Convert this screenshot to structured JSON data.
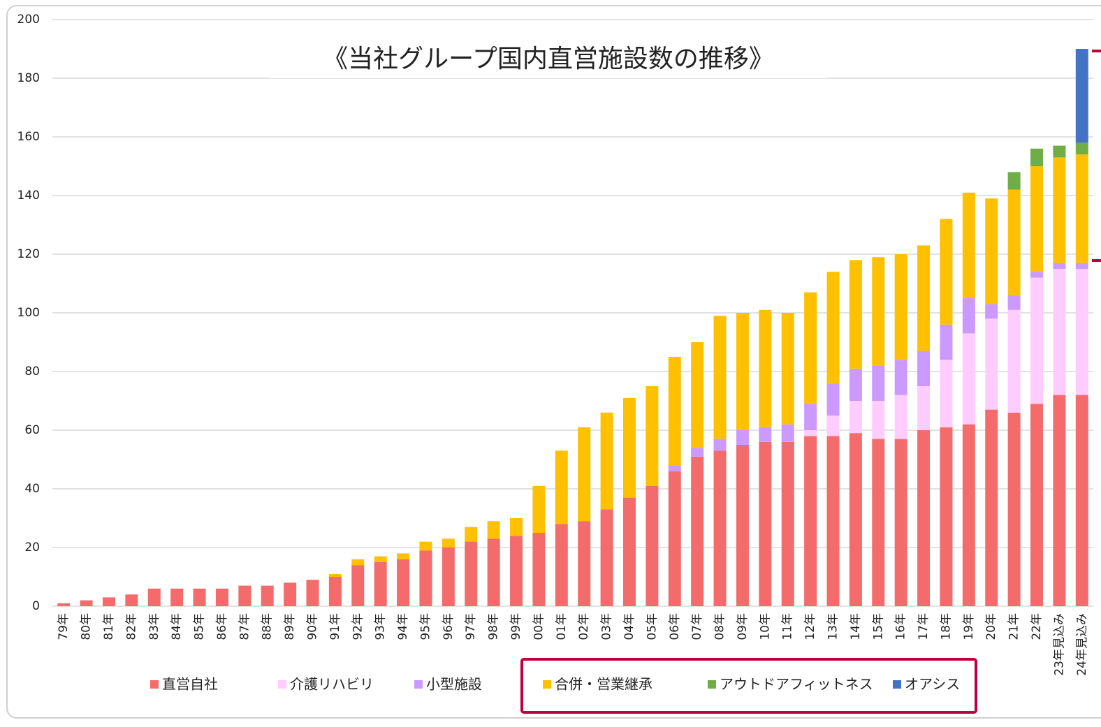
{
  "chart_data": {
    "type": "stacked_bar",
    "title": "《当社グループ国内直営施設数の推移》",
    "categories": [
      "79年",
      "80年",
      "81年",
      "82年",
      "83年",
      "84年",
      "85年",
      "86年",
      "87年",
      "88年",
      "89年",
      "90年",
      "91年",
      "92年",
      "93年",
      "94年",
      "95年",
      "96年",
      "97年",
      "98年",
      "99年",
      "00年",
      "01年",
      "02年",
      "03年",
      "04年",
      "05年",
      "06年",
      "07年",
      "08年",
      "09年",
      "10年",
      "11年",
      "12年",
      "13年",
      "14年",
      "15年",
      "16年",
      "17年",
      "18年",
      "19年",
      "20年",
      "21年",
      "22年",
      "23年見込み",
      "24年見込み"
    ],
    "series": [
      {
        "name": "直営自社",
        "color": "#f46b6b",
        "values": [
          1,
          2,
          3,
          4,
          6,
          6,
          6,
          6,
          7,
          7,
          8,
          9,
          10,
          14,
          15,
          16,
          19,
          20,
          22,
          23,
          24,
          25,
          28,
          29,
          33,
          37,
          41,
          46,
          51,
          53,
          55,
          56,
          56,
          58,
          58,
          59,
          57,
          57,
          60,
          61,
          62,
          67,
          66,
          69,
          72,
          72
        ]
      },
      {
        "name": "介護リハビリ",
        "color": "#ffccff",
        "values": [
          0,
          0,
          0,
          0,
          0,
          0,
          0,
          0,
          0,
          0,
          0,
          0,
          0,
          0,
          0,
          0,
          0,
          0,
          0,
          0,
          0,
          0,
          0,
          0,
          0,
          0,
          0,
          0,
          0,
          0,
          0,
          0,
          0,
          2,
          7,
          11,
          13,
          15,
          15,
          23,
          31,
          31,
          35,
          43,
          43,
          43
        ]
      },
      {
        "name": "小型施設",
        "color": "#cc99ff",
        "values": [
          0,
          0,
          0,
          0,
          0,
          0,
          0,
          0,
          0,
          0,
          0,
          0,
          0,
          0,
          0,
          0,
          0,
          0,
          0,
          0,
          0,
          0,
          0,
          0,
          0,
          0,
          0,
          2,
          3,
          4,
          5,
          5,
          6,
          9,
          11,
          11,
          12,
          12,
          12,
          12,
          12,
          5,
          5,
          2,
          2,
          2
        ]
      },
      {
        "name": "合併・営業継承",
        "color": "#ffc000",
        "values": [
          0,
          0,
          0,
          0,
          0,
          0,
          0,
          0,
          0,
          0,
          0,
          0,
          1,
          2,
          2,
          2,
          3,
          3,
          5,
          6,
          6,
          16,
          25,
          32,
          33,
          34,
          34,
          37,
          36,
          42,
          40,
          40,
          38,
          38,
          38,
          37,
          37,
          36,
          36,
          36,
          36,
          36,
          36,
          36,
          36,
          37
        ]
      },
      {
        "name": "アウトドアフィットネス",
        "color": "#70ad47",
        "values": [
          0,
          0,
          0,
          0,
          0,
          0,
          0,
          0,
          0,
          0,
          0,
          0,
          0,
          0,
          0,
          0,
          0,
          0,
          0,
          0,
          0,
          0,
          0,
          0,
          0,
          0,
          0,
          0,
          0,
          0,
          0,
          0,
          0,
          0,
          0,
          0,
          0,
          0,
          0,
          0,
          0,
          0,
          6,
          6,
          4,
          4
        ]
      },
      {
        "name": "オアシス",
        "color": "#4472c4",
        "values": [
          0,
          0,
          0,
          0,
          0,
          0,
          0,
          0,
          0,
          0,
          0,
          0,
          0,
          0,
          0,
          0,
          0,
          0,
          0,
          0,
          0,
          0,
          0,
          0,
          0,
          0,
          0,
          0,
          0,
          0,
          0,
          0,
          0,
          0,
          0,
          0,
          0,
          0,
          0,
          0,
          0,
          0,
          0,
          0,
          0,
          32
        ]
      }
    ],
    "ylim": [
      0,
      200
    ],
    "yticks": [
      0,
      20,
      40,
      60,
      80,
      100,
      120,
      140,
      160,
      180,
      200
    ],
    "grid": true
  }
}
